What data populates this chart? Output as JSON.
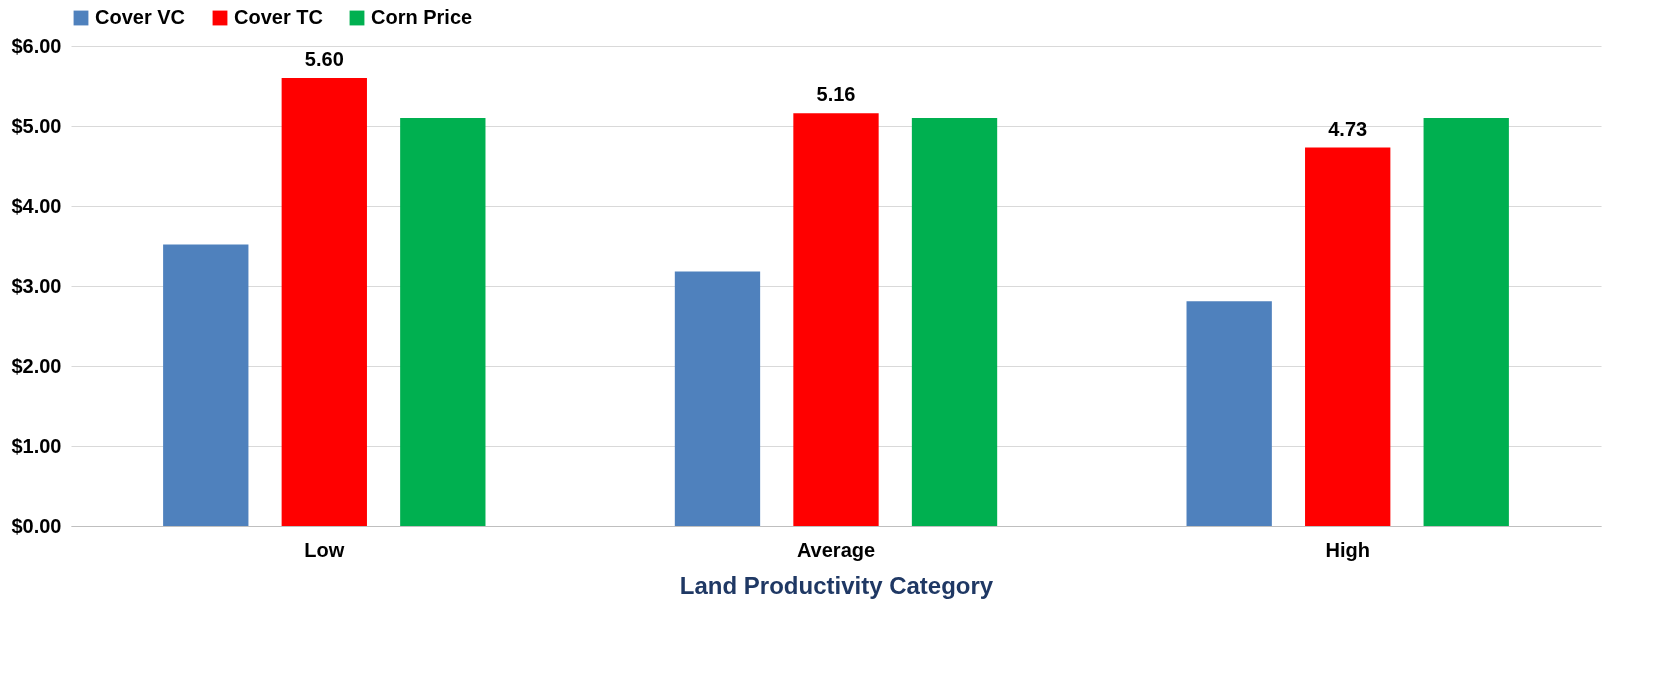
{
  "chart_data": {
    "type": "bar",
    "xlabel": "Land Productivity Category",
    "categories": [
      "Low",
      "Average",
      "High"
    ],
    "series": [
      {
        "name": "Cover VC",
        "color": "#4f81bd",
        "values": [
          3.52,
          3.18,
          2.81
        ]
      },
      {
        "name": "Cover TC",
        "color": "#ff0000",
        "values": [
          5.6,
          5.16,
          4.73
        ],
        "value_labels": [
          "5.60",
          "5.16",
          "4.73"
        ]
      },
      {
        "name": "Corn Price",
        "color": "#00b050",
        "values": [
          5.1,
          5.1,
          5.1
        ]
      }
    ],
    "ylim": [
      0,
      6
    ],
    "yticks": [
      {
        "value": 0,
        "label": "$0.00"
      },
      {
        "value": 1,
        "label": "$1.00"
      },
      {
        "value": 2,
        "label": "$2.00"
      },
      {
        "value": 3,
        "label": "$3.00"
      },
      {
        "value": 4,
        "label": "$4.00"
      },
      {
        "value": 5,
        "label": "$5.00"
      },
      {
        "value": 6,
        "label": "$6.00"
      }
    ],
    "grid": "y",
    "legend": "top"
  }
}
